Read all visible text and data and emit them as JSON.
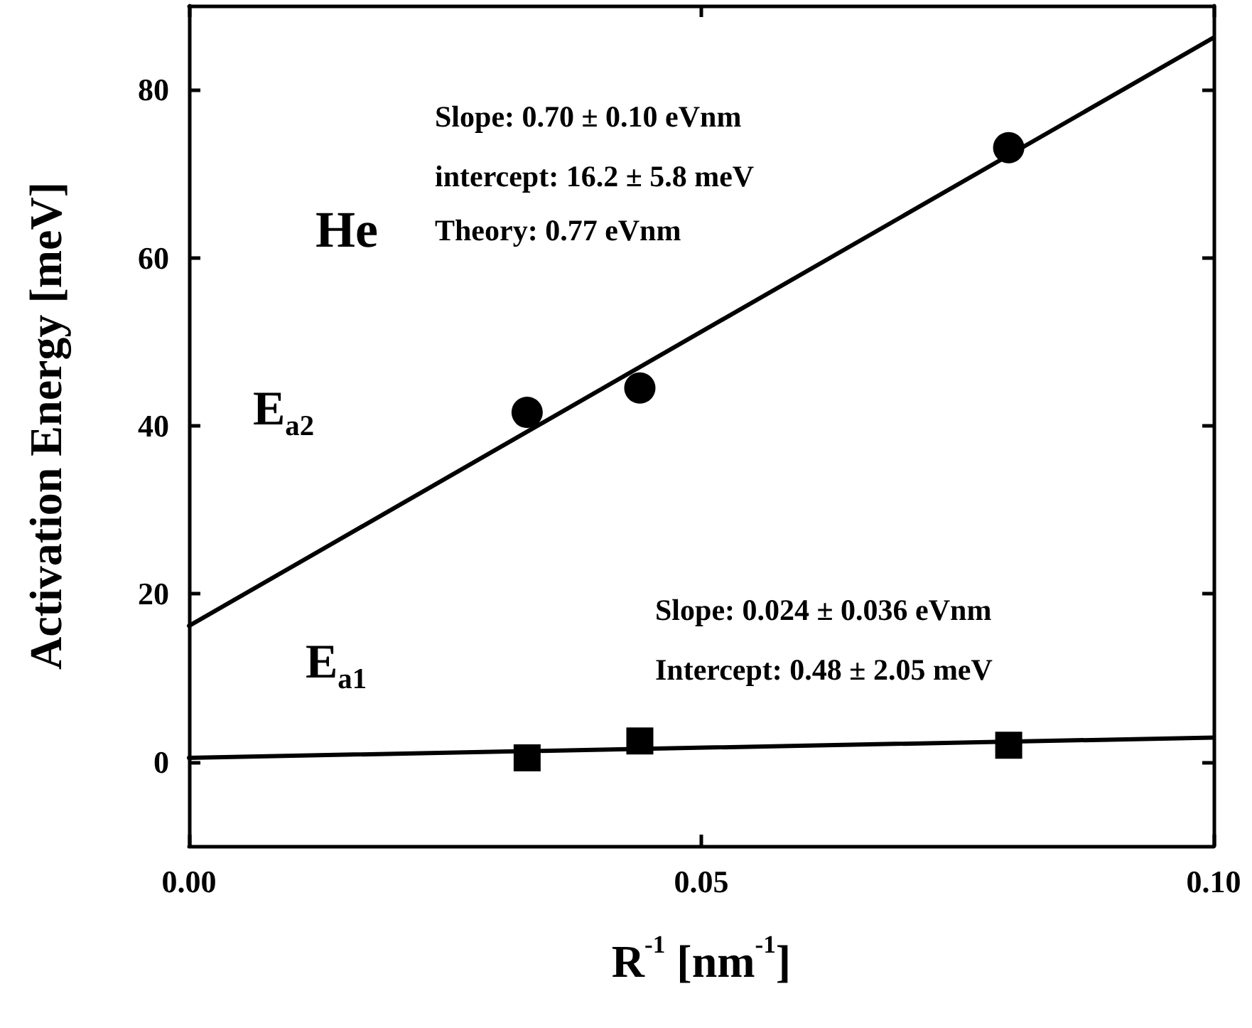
{
  "chart_data": {
    "type": "scatter",
    "xlabel": "R$^{-1}$ [nm$^{-1}$]",
    "ylabel": "Activation Energy [meV]",
    "xlim": [
      0,
      0.1
    ],
    "xticks": [
      {
        "value": 0,
        "label": "0.00"
      },
      0.05,
      {
        "value": 0.1,
        "label": "0.10"
      }
    ],
    "ylim": [
      -10,
      90
    ],
    "yticks": [
      0,
      20,
      40,
      60,
      80
    ],
    "series": [
      {
        "marker": "circle",
        "color": "#000000",
        "x": [
          0.033,
          0.044,
          0.08
        ],
        "values": [
          41.6,
          44.5,
          73.1
        ]
      },
      {
        "marker": "square",
        "color": "#000000",
        "x": [
          0.033,
          0.044,
          0.08
        ],
        "values": [
          0.5,
          2.5,
          2.0
        ]
      },
      {
        "type": "line",
        "marker": "none",
        "color": "#000000",
        "x": [
          0,
          0.1
        ],
        "values": [
          16.2,
          86.2
        ]
      },
      {
        "type": "line",
        "marker": "none",
        "color": "#000000",
        "x": [
          0,
          0.1
        ],
        "values": [
          0.5,
          2.9
        ]
      }
    ],
    "annotations": [
      "Slope: 0.70 ± 0.10 eVnm",
      "intercept: 16.2 ± 5.8 meV",
      "Theory: 0.77 eVnm",
      "He",
      "E$_{a2}$",
      "Slope: 0.024 ± 0.036 eVnm",
      "Intercept: 0.48 ± 2.05 meV",
      "E$_{a1}$"
    ]
  }
}
